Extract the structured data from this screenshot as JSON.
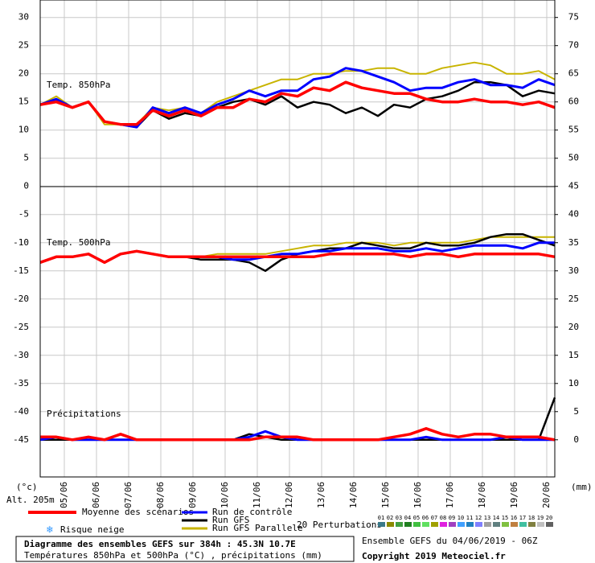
{
  "chart_data": {
    "type": "line",
    "title": "Diagramme des ensembles GEFS sur 384h : 45.3N 10.7E",
    "subtitle": "Températures 850hPa et 500hPa (°C) , précipitations (mm)",
    "run_label": "Ensemble GEFS du 04/06/2019 - 06Z",
    "copyright": "Copyright 2019 Meteociel.fr",
    "panel_labels": [
      "Temp. 850hPa",
      "Temp. 500hPa",
      "Précipitations"
    ],
    "y_unit": "(°c)",
    "y2_unit": "(mm)",
    "altitude": "Alt. 205m",
    "snow_label": "Risque neige",
    "perturbations_label": "20 Perturbations",
    "perturbations": [
      {
        "label": "01",
        "color": "#3a7a8a"
      },
      {
        "label": "02",
        "color": "#8a8a00"
      },
      {
        "label": "03",
        "color": "#3f9f3f"
      },
      {
        "label": "04",
        "color": "#208020"
      },
      {
        "label": "05",
        "color": "#40c040"
      },
      {
        "label": "06",
        "color": "#60e060"
      },
      {
        "label": "07",
        "color": "#a0a000"
      },
      {
        "label": "08",
        "color": "#e020e0"
      },
      {
        "label": "09",
        "color": "#a040c0"
      },
      {
        "label": "10",
        "color": "#40a0ff"
      },
      {
        "label": "11",
        "color": "#2080c0"
      },
      {
        "label": "12",
        "color": "#8080ff"
      },
      {
        "label": "13",
        "color": "#a0a0a0"
      },
      {
        "label": "14",
        "color": "#608080"
      },
      {
        "label": "15",
        "color": "#80c040"
      },
      {
        "label": "16",
        "color": "#c08040"
      },
      {
        "label": "17",
        "color": "#40c0a0"
      },
      {
        "label": "18",
        "color": "#808040"
      },
      {
        "label": "19",
        "color": "#c0c0c0"
      },
      {
        "label": "20",
        "color": "#606060"
      }
    ],
    "x": [
      0,
      12,
      24,
      36,
      48,
      60,
      72,
      84,
      96,
      108,
      120,
      132,
      144,
      156,
      168,
      180,
      192,
      204,
      216,
      228,
      240,
      252,
      264,
      276,
      288,
      300,
      312,
      324,
      336,
      348,
      360,
      372,
      384
    ],
    "xlim": [
      0,
      384
    ],
    "xticks": [
      {
        "value": 18,
        "label": "05/06"
      },
      {
        "value": 42,
        "label": "06/06"
      },
      {
        "value": 66,
        "label": "07/06"
      },
      {
        "value": 90,
        "label": "08/06"
      },
      {
        "value": 114,
        "label": "09/06"
      },
      {
        "value": 138,
        "label": "10/06"
      },
      {
        "value": 162,
        "label": "11/06"
      },
      {
        "value": 186,
        "label": "12/06"
      },
      {
        "value": 210,
        "label": "13/06"
      },
      {
        "value": 234,
        "label": "14/06"
      },
      {
        "value": 258,
        "label": "15/06"
      },
      {
        "value": 282,
        "label": "16/06"
      },
      {
        "value": 306,
        "label": "17/06"
      },
      {
        "value": 330,
        "label": "18/06"
      },
      {
        "value": 354,
        "label": "19/06"
      },
      {
        "value": 378,
        "label": "20/06"
      }
    ],
    "ylim": [
      -51.6,
      33.1
    ],
    "yticks": [
      30,
      25,
      20,
      15,
      10,
      5,
      0,
      -5,
      -10,
      -15,
      -20,
      -25,
      -30,
      -35,
      -40,
      -45
    ],
    "y2lim": [
      -6.6,
      78.1
    ],
    "y2ticks": [
      75,
      70,
      65,
      60,
      55,
      50,
      45,
      40,
      35,
      30,
      25,
      20,
      15,
      10,
      5,
      0
    ],
    "grid": true,
    "series": [
      {
        "name": "Moyenne des scénarios",
        "color": "#ff0000",
        "t850": [
          14.5,
          15,
          14,
          15,
          11.5,
          11,
          11,
          13.5,
          12.5,
          13.5,
          12.5,
          14,
          14,
          15.5,
          15,
          16.5,
          16,
          17.5,
          17,
          18.5,
          17.5,
          17,
          16.5,
          16.5,
          15.5,
          15,
          15,
          15.5,
          15,
          15,
          14.5,
          15,
          14
        ],
        "t500": [
          -13.5,
          -12.5,
          -12.5,
          -12,
          -13.5,
          -12,
          -11.5,
          -12,
          -12.5,
          -12.5,
          -12.5,
          -12.5,
          -12.5,
          -12.5,
          -12.5,
          -12.5,
          -12.5,
          -12.5,
          -12,
          -12,
          -12,
          -12,
          -12,
          -12.5,
          -12,
          -12,
          -12.5,
          -12,
          -12,
          -12,
          -12,
          -12,
          -12.5
        ],
        "precip": [
          0.5,
          0.5,
          0,
          0.5,
          0,
          1,
          0,
          0,
          0,
          0,
          0,
          0,
          0,
          0,
          0.5,
          0.5,
          0.5,
          0,
          0,
          0,
          0,
          0,
          0.5,
          1,
          2,
          1,
          0.5,
          1,
          1,
          0.5,
          0.5,
          0.5,
          0
        ]
      },
      {
        "name": "Run de contrôle",
        "color": "#0000ff",
        "t850": [
          14.5,
          15.5,
          14,
          15,
          11.5,
          11,
          10.5,
          14,
          13,
          14,
          13,
          14.5,
          15.5,
          17,
          16,
          17,
          17,
          19,
          19.5,
          21,
          20.5,
          19.5,
          18.5,
          17,
          17.5,
          17.5,
          18.5,
          19,
          18,
          18,
          17.5,
          19,
          18
        ],
        "t500": [
          -13.5,
          -12.5,
          -12.5,
          -12,
          -13.5,
          -12,
          -11.5,
          -12,
          -12.5,
          -12.5,
          -12.5,
          -12.5,
          -13,
          -13,
          -12.5,
          -12,
          -12,
          -11.5,
          -11.5,
          -11,
          -11,
          -11,
          -11.5,
          -11.5,
          -11,
          -11.5,
          -11,
          -10.5,
          -10.5,
          -10.5,
          -11,
          -10,
          -10
        ],
        "precip": [
          0,
          0.5,
          0,
          0,
          0,
          0,
          0,
          0,
          0,
          0,
          0,
          0,
          0,
          0.5,
          1.5,
          0.5,
          0,
          0,
          0,
          0,
          0,
          0,
          0,
          0,
          0.5,
          0,
          0,
          0,
          0,
          0.5,
          0,
          0,
          0
        ]
      },
      {
        "name": "Run GFS",
        "color": "#000000",
        "t850": [
          14.5,
          15.5,
          14,
          15,
          11.5,
          11,
          10.5,
          13.5,
          12,
          13,
          12.5,
          14,
          15,
          15.5,
          14.5,
          16,
          14,
          15,
          14.5,
          13,
          14,
          12.5,
          14.5,
          14,
          15.5,
          16,
          17,
          18.5,
          18.5,
          18,
          16,
          17,
          16.5
        ],
        "t500": [
          -13.5,
          -12.5,
          -12.5,
          -12,
          -13.5,
          -12,
          -11.5,
          -12,
          -12.5,
          -12.5,
          -13,
          -13,
          -13,
          -13.5,
          -15,
          -13,
          -12,
          -11.5,
          -11,
          -11,
          -10,
          -10.5,
          -11,
          -11,
          -10,
          -10.5,
          -10.5,
          -10,
          -9,
          -8.5,
          -8.5,
          -9.5,
          -10.5
        ],
        "precip": [
          0,
          0,
          0,
          0,
          0,
          0,
          0,
          0,
          0,
          0,
          0,
          0,
          0,
          1,
          0.5,
          0,
          0,
          0,
          0,
          0,
          0,
          0,
          0,
          0,
          0,
          0,
          0,
          0,
          0,
          0,
          0,
          0,
          7.5
        ]
      },
      {
        "name": "Run GFS Parallele",
        "color": "#c8b400",
        "t850": [
          14.5,
          16,
          14,
          15,
          11,
          11,
          11,
          14,
          13.5,
          14,
          13,
          15,
          16,
          17,
          18,
          19,
          19,
          20,
          20,
          20.5,
          20.5,
          21,
          21,
          20,
          20,
          21,
          21.5,
          22,
          21.5,
          20,
          20,
          20.5,
          19
        ],
        "t500": [
          -13.5,
          -12.5,
          -12.5,
          -12,
          -13.5,
          -12,
          -11.5,
          -12,
          -12.5,
          -12.5,
          -12.5,
          -12,
          -12,
          -12,
          -12,
          -11.5,
          -11,
          -10.5,
          -10.5,
          -10,
          -10,
          -10,
          -10.5,
          -10,
          -10,
          -10,
          -10,
          -9.5,
          -9,
          -9,
          -9,
          -9,
          -9
        ]
      }
    ]
  }
}
